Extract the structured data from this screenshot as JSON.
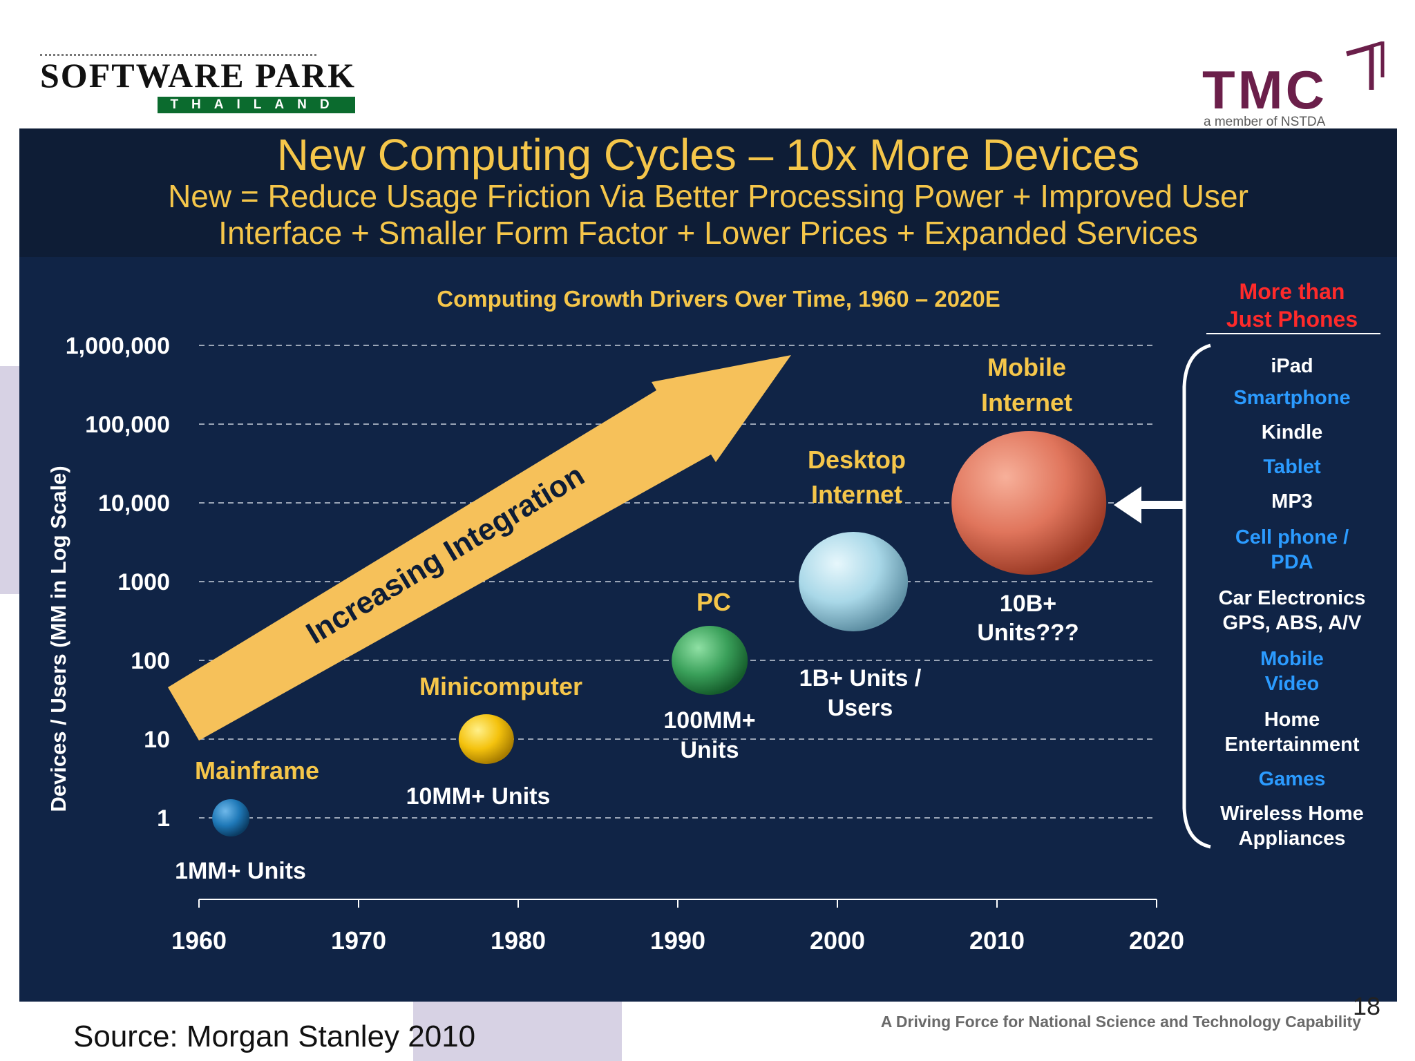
{
  "logos": {
    "software_park_name": "SOFTWARE PARK",
    "software_park_sub": "THAILAND",
    "tmc_name": "TMC",
    "tmc_sub": "a member of NSTDA"
  },
  "slide": {
    "title": "New Computing Cycles – 10x More Devices",
    "subtitle_line1": "New = Reduce Usage Friction Via Better Processing Power + Improved User",
    "subtitle_line2": "Interface + Smaller Form Factor + Lower Prices + Expanded Services",
    "source": "Source: Morgan Stanley 2010",
    "tagline": "A Driving Force for National Science and Technology Capability",
    "page_number": "18"
  },
  "chart_data": {
    "type": "scatter",
    "title": "Computing Growth Drivers Over Time, 1960 – 2020E",
    "ylabel": "Devices / Users (MM in Log Scale)",
    "xlabel": "",
    "yscale": "log",
    "x_ticks": [
      "1960",
      "1970",
      "1980",
      "1990",
      "2000",
      "2010",
      "2020"
    ],
    "y_ticks": [
      {
        "value": 1,
        "label": "1"
      },
      {
        "value": 10,
        "label": "10"
      },
      {
        "value": 100,
        "label": "100"
      },
      {
        "value": 1000,
        "label": "1000"
      },
      {
        "value": 10000,
        "label": "10,000"
      },
      {
        "value": 100000,
        "label": "100,000"
      },
      {
        "value": 1000000,
        "label": "1,000,000"
      }
    ],
    "xlim": [
      1960,
      2020
    ],
    "ylim": [
      1,
      1000000
    ],
    "grid": "horizontal dashed",
    "arrow_label": "Increasing Integration",
    "points": [
      {
        "name": "Mainframe",
        "units": "1MM+ Units",
        "x": 1962,
        "y": 1,
        "color": "#1f79b8"
      },
      {
        "name": "Minicomputer",
        "units": "10MM+ Units",
        "x": 1978,
        "y": 10,
        "color": "#f4c20d"
      },
      {
        "name": "PC",
        "units": "100MM+ Units",
        "x": 1992,
        "y": 100,
        "color": "#3aa05a"
      },
      {
        "name": "Desktop Internet",
        "units": "1B+ Units / Users",
        "x": 2001,
        "y": 1000,
        "color": "#a9d8e8"
      },
      {
        "name": "Mobile Internet",
        "units": "10B+ Units???",
        "x": 2012,
        "y": 10000,
        "color": "#e0755c"
      }
    ],
    "annotations": {
      "mainframe_units": "1MM+ Units",
      "minicomputer_units": "10MM+ Units",
      "pc_units_1": "100MM+",
      "pc_units_2": "Units",
      "desktop_name_1": "Desktop",
      "desktop_name_2": "Internet",
      "desktop_units_1": "1B+ Units /",
      "desktop_units_2": "Users",
      "mobile_name_1": "Mobile",
      "mobile_name_2": "Internet",
      "mobile_units_1": "10B+",
      "mobile_units_2": "Units???"
    }
  },
  "sidebar": {
    "heading_1": "More than",
    "heading_2": "Just Phones",
    "heading_color": "#ff2a2a",
    "items": [
      {
        "label": "iPad",
        "color": "#ffffff"
      },
      {
        "label": "Smartphone",
        "color": "#2b9bff"
      },
      {
        "label": "Kindle",
        "color": "#ffffff"
      },
      {
        "label": "Tablet",
        "color": "#2b9bff"
      },
      {
        "label": "MP3",
        "color": "#ffffff"
      },
      {
        "label": "Cell phone /",
        "color": "#2b9bff"
      },
      {
        "label": "PDA",
        "color": "#2b9bff"
      },
      {
        "label": "Car Electronics",
        "color": "#ffffff"
      },
      {
        "label": "GPS, ABS, A/V",
        "color": "#ffffff"
      },
      {
        "label": "Mobile",
        "color": "#2b9bff"
      },
      {
        "label": "Video",
        "color": "#2b9bff"
      },
      {
        "label": "Home",
        "color": "#ffffff"
      },
      {
        "label": "Entertainment",
        "color": "#ffffff"
      },
      {
        "label": "Games",
        "color": "#2b9bff"
      },
      {
        "label": "Wireless Home",
        "color": "#ffffff"
      },
      {
        "label": "Appliances",
        "color": "#ffffff"
      }
    ]
  }
}
